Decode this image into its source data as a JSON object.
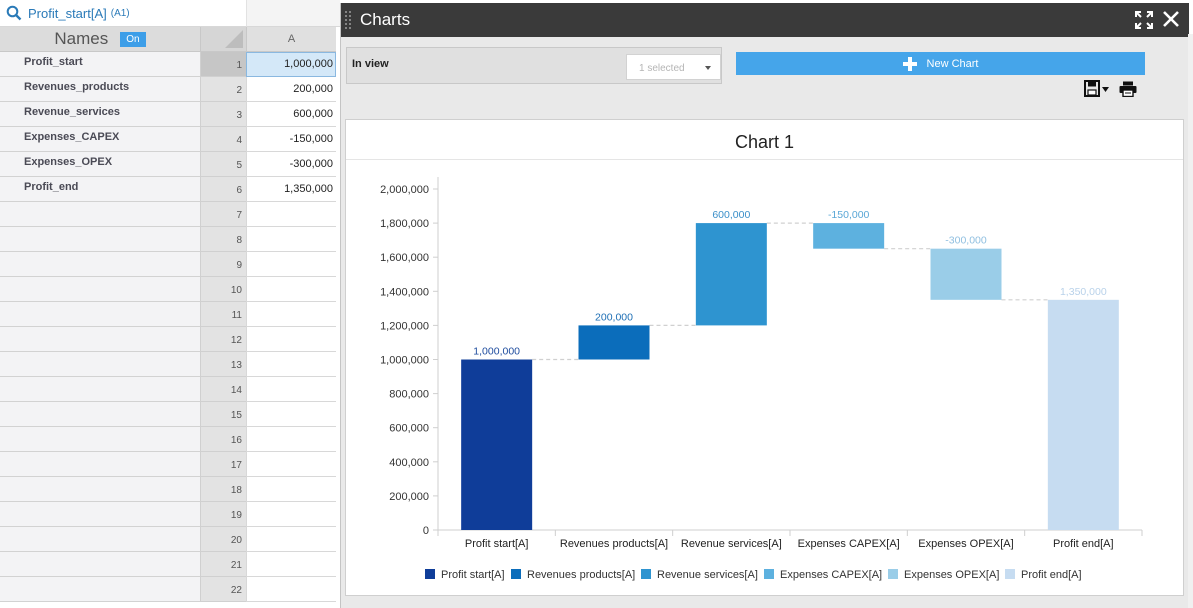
{
  "search": {
    "cell_ref": "Profit_start[A]",
    "cell_addr": "(A1)"
  },
  "names_panel": {
    "title": "Names",
    "toggle": "On"
  },
  "sheet": {
    "column_header": "A",
    "rows": [
      {
        "num": "1",
        "name": "Profit_start",
        "value": "1,000,000"
      },
      {
        "num": "2",
        "name": "Revenues_products",
        "value": "200,000"
      },
      {
        "num": "3",
        "name": "Revenue_services",
        "value": "600,000"
      },
      {
        "num": "4",
        "name": "Expenses_CAPEX",
        "value": "-150,000"
      },
      {
        "num": "5",
        "name": "Expenses_OPEX",
        "value": "-300,000"
      },
      {
        "num": "6",
        "name": "Profit_end",
        "value": "1,350,000"
      },
      {
        "num": "7",
        "name": "",
        "value": ""
      },
      {
        "num": "8",
        "name": "",
        "value": ""
      },
      {
        "num": "9",
        "name": "",
        "value": ""
      },
      {
        "num": "10",
        "name": "",
        "value": ""
      },
      {
        "num": "11",
        "name": "",
        "value": ""
      },
      {
        "num": "12",
        "name": "",
        "value": ""
      },
      {
        "num": "13",
        "name": "",
        "value": ""
      },
      {
        "num": "14",
        "name": "",
        "value": ""
      },
      {
        "num": "15",
        "name": "",
        "value": ""
      },
      {
        "num": "16",
        "name": "",
        "value": ""
      },
      {
        "num": "17",
        "name": "",
        "value": ""
      },
      {
        "num": "18",
        "name": "",
        "value": ""
      },
      {
        "num": "19",
        "name": "",
        "value": ""
      },
      {
        "num": "20",
        "name": "",
        "value": ""
      },
      {
        "num": "21",
        "name": "",
        "value": ""
      },
      {
        "num": "22",
        "name": "",
        "value": ""
      }
    ],
    "selected_row": "1"
  },
  "charts_panel": {
    "title": "Charts",
    "in_view_label": "In view",
    "selector_value": "1 selected",
    "new_chart_label": "New Chart",
    "icons": [
      "grip-icon",
      "expand-icon",
      "close-icon",
      "plus-icon",
      "save-icon",
      "print-icon"
    ]
  },
  "chart_data": {
    "type": "bar",
    "subtype": "waterfall",
    "title": "Chart 1",
    "categories": [
      "Profit start[A]",
      "Revenues products[A]",
      "Revenue services[A]",
      "Expenses CAPEX[A]",
      "Expenses OPEX[A]",
      "Profit end[A]"
    ],
    "values": [
      1000000,
      200000,
      600000,
      -150000,
      -300000,
      1350000
    ],
    "data_labels": [
      "1,000,000",
      "200,000",
      "600,000",
      "-150,000",
      "-300,000",
      "1,350,000"
    ],
    "kinds": [
      "total",
      "delta",
      "delta",
      "delta",
      "delta",
      "total"
    ],
    "colors": [
      "#0f3d99",
      "#0b6dbb",
      "#2e94d0",
      "#5db1df",
      "#9acde8",
      "#c6dcf1"
    ],
    "label_colors": [
      "#1e4c9e",
      "#1e6fb5",
      "#3a8fc9",
      "#5aa7d6",
      "#8fbfe0",
      "#b9d2ea"
    ],
    "ylim": [
      0,
      2000000
    ],
    "yticks": [
      "0",
      "200,000",
      "400,000",
      "600,000",
      "800,000",
      "1,000,000",
      "1,200,000",
      "1,400,000",
      "1,600,000",
      "1,800,000",
      "2,000,000"
    ],
    "ytick_values": [
      0,
      200000,
      400000,
      600000,
      800000,
      1000000,
      1200000,
      1400000,
      1600000,
      1800000,
      2000000
    ],
    "legend": [
      "Profit start[A]",
      "Revenues products[A]",
      "Revenue services[A]",
      "Expenses CAPEX[A]",
      "Expenses OPEX[A]",
      "Profit end[A]"
    ],
    "legend_position": "bottom",
    "grid": false,
    "connectors": true
  }
}
